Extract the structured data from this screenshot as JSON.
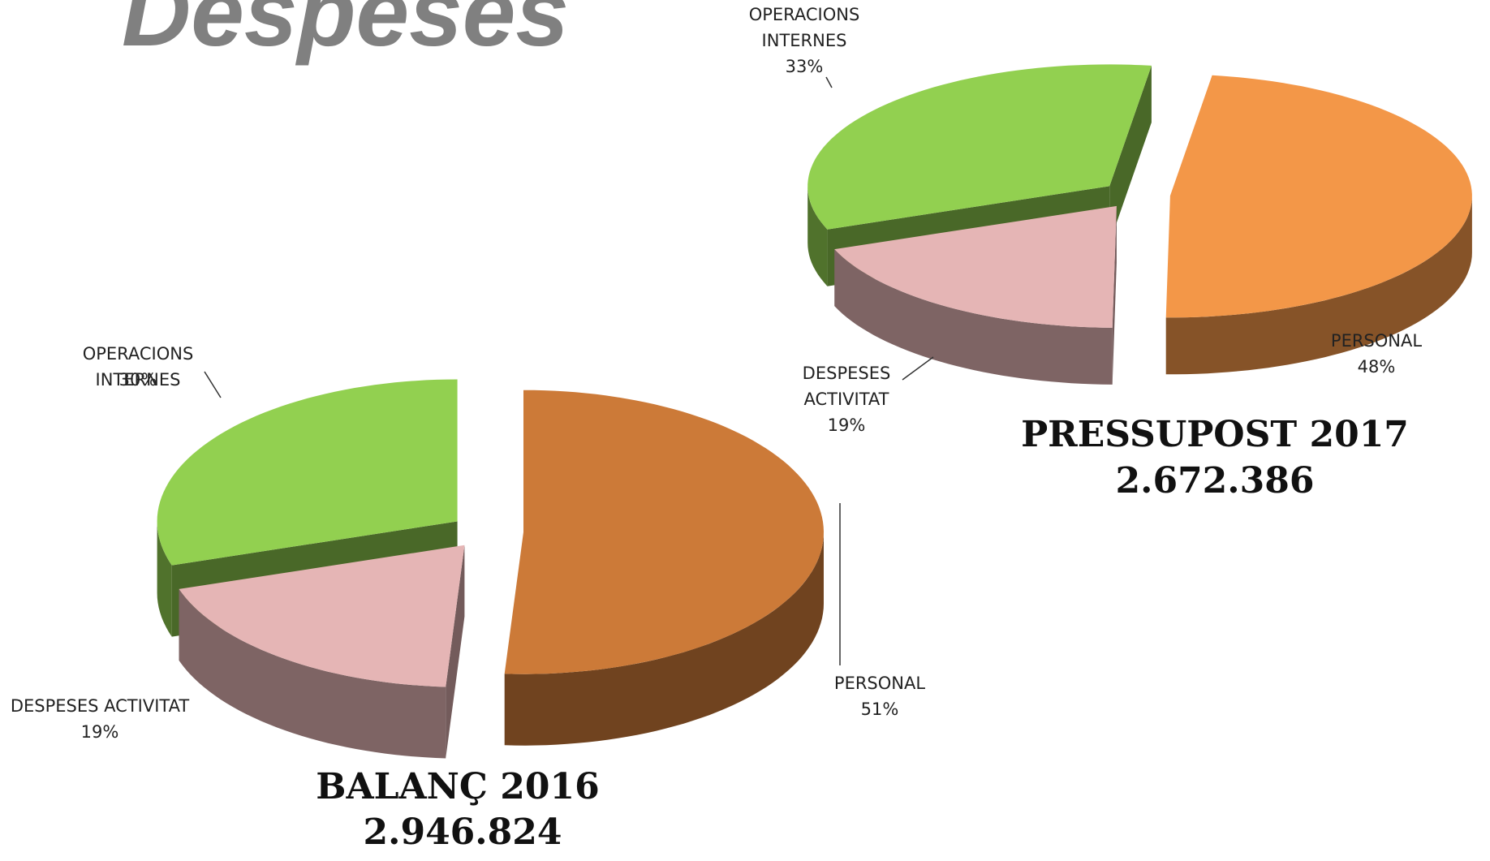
{
  "title": "Despeses",
  "chart_data": [
    {
      "type": "pie",
      "title": "BALANÇ 2016",
      "subtitle": "2.946.824",
      "categories": [
        "PERSONAL",
        "DESPESES ACTIVITAT",
        "OPERACIONS INTERNES"
      ],
      "values": [
        51,
        19,
        30
      ],
      "value_labels": [
        "51%",
        "19%",
        "30%"
      ],
      "colors": [
        "#cc7a38",
        "#e5b5b5",
        "#92d050"
      ]
    },
    {
      "type": "pie",
      "title": "PRESSUPOST 2017",
      "subtitle": "2.672.386",
      "categories": [
        "PERSONAL",
        "DESPESES ACTIVITAT",
        "OPERACIONS INTERNES"
      ],
      "values": [
        48,
        19,
        33
      ],
      "value_labels": [
        "48%",
        "19%",
        "33%"
      ],
      "colors": [
        "#f39748",
        "#e5b5b5",
        "#92d050"
      ]
    }
  ]
}
